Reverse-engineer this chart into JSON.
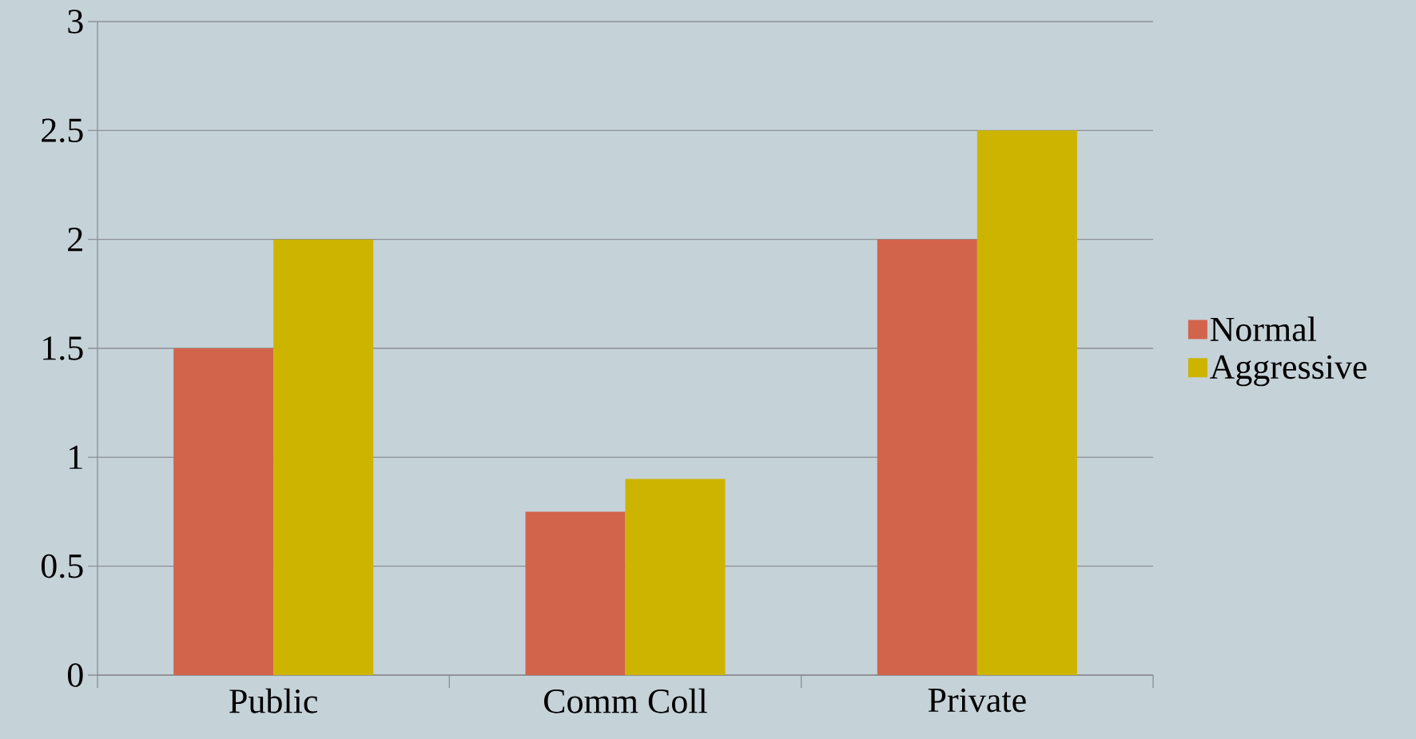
{
  "chart_data": {
    "type": "bar",
    "categories": [
      "Public",
      "Comm Coll",
      "Private"
    ],
    "series": [
      {
        "name": "Normal",
        "color": "#d2644c",
        "values": [
          1.5,
          0.75,
          2
        ]
      },
      {
        "name": "Aggressive",
        "color": "#ccb400",
        "values": [
          2,
          0.9,
          2.5
        ]
      }
    ],
    "ylim": [
      0,
      3
    ],
    "yticks": [
      0,
      0.5,
      1,
      1.5,
      2,
      2.5,
      3
    ],
    "grid": "y",
    "legend": "right"
  }
}
